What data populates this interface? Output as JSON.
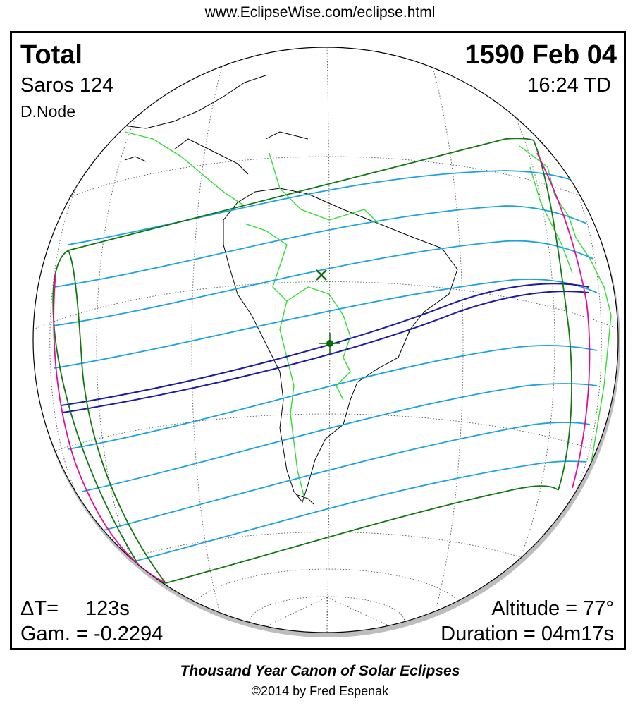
{
  "header": {
    "url": "www.EclipseWise.com/eclipse.html"
  },
  "eclipse": {
    "type": "Total",
    "date": "1590 Feb 04",
    "saros": "Saros 124",
    "time": "16:24 TD",
    "node": "D.Node",
    "delta_t_label": "ΔT=",
    "delta_t_value": "123s",
    "gamma": "Gam. = -0.2294",
    "altitude": "Altitude = 77°",
    "duration": "Duration = 04m17s"
  },
  "footer": {
    "title": "Thousand Year Canon of Solar Eclipses",
    "copyright": "©2014 by Fred Espenak"
  },
  "colors": {
    "coastline": "#000000",
    "borders": "#33dd33",
    "penumbra_limits": "#117711",
    "partial_lines": "#1aa3e0",
    "central_path": "#1a1aa6",
    "rise_set_curves": "#e0109a",
    "markers": "#0b6b0b"
  }
}
